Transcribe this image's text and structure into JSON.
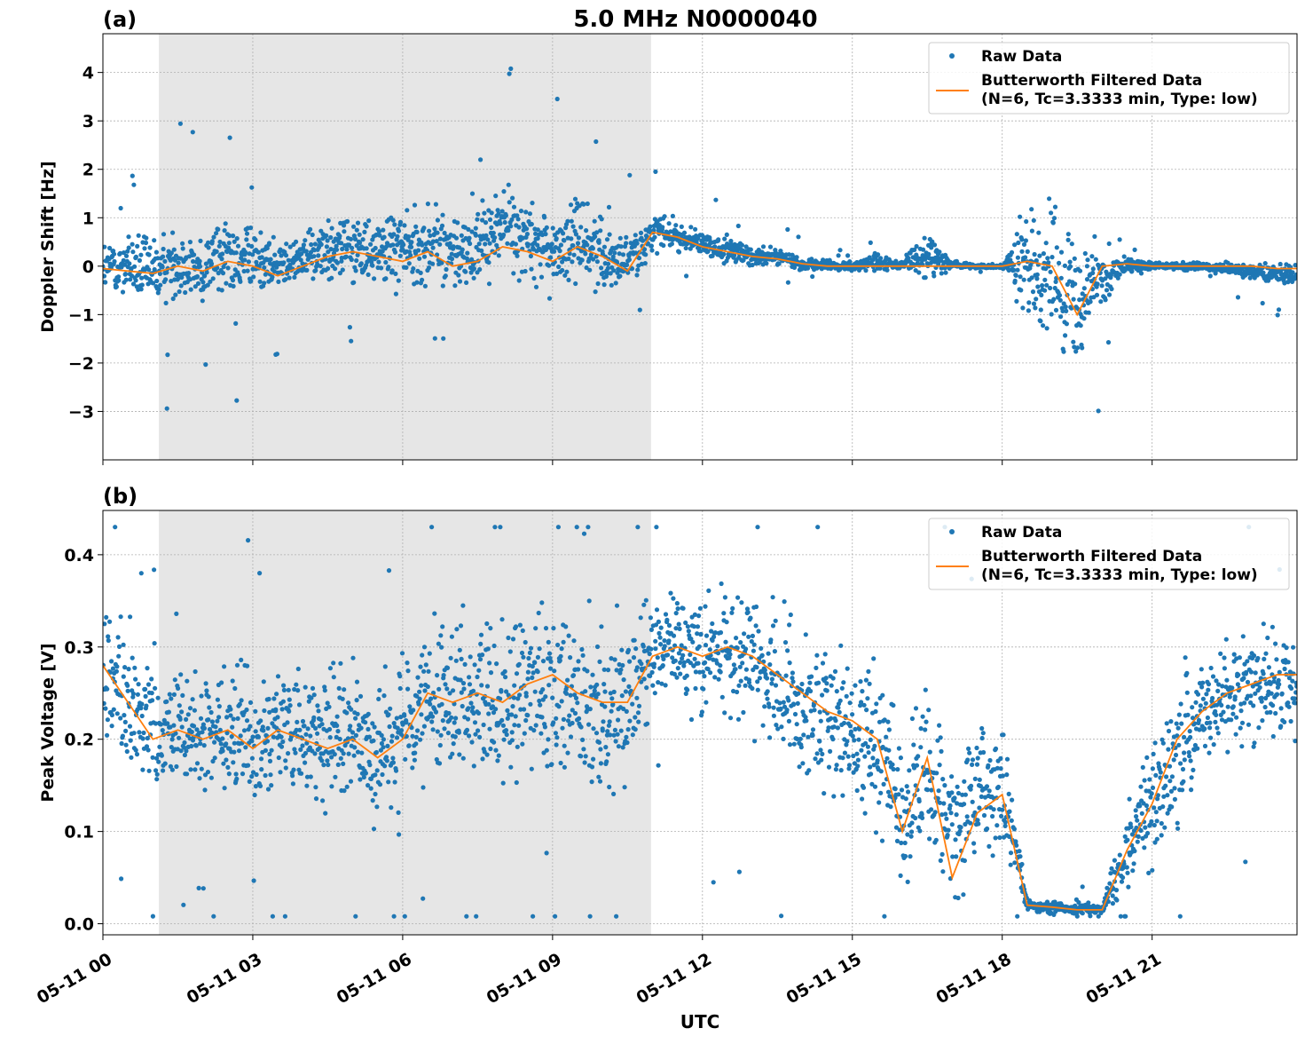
{
  "figure": {
    "title": "5.0 MHz N0000040",
    "xlabel": "UTC"
  },
  "legend": {
    "raw_label": "Raw Data",
    "filtered_label_line1": "Butterworth Filtered Data",
    "filtered_label_line2": "(N=6, Tc=3.3333 min, Type: low)"
  },
  "colors": {
    "raw": "#1f77b4",
    "filtered": "#ff7f0e",
    "shade": "#e6e6e6",
    "grid": "#b0b0b0"
  },
  "chart_data": [
    {
      "type": "scatter",
      "panel_label": "(a)",
      "title": "5.0 MHz N0000040",
      "ylabel": "Doppler Shift [Hz]",
      "xlabel": "",
      "x_unit": "hours UTC on 05-11",
      "xlim": [
        0,
        23.9
      ],
      "ylim": [
        -4.0,
        4.8
      ],
      "xticks": [
        0,
        3,
        6,
        9,
        12,
        15,
        18,
        21
      ],
      "xtick_labels": [
        "05-11 00",
        "05-11 03",
        "05-11 06",
        "05-11 09",
        "05-11 12",
        "05-11 15",
        "05-11 18",
        "05-11 21"
      ],
      "yticks": [
        -3,
        -2,
        -1,
        0,
        1,
        2,
        3,
        4
      ],
      "ytick_labels": [
        "−3",
        "−2",
        "−1",
        "0",
        "1",
        "2",
        "3",
        "4"
      ],
      "grid": true,
      "legend_position": "top-right",
      "shaded_interval": [
        1.12,
        10.97
      ],
      "t": [
        0,
        0.5,
        1,
        1.5,
        2,
        2.5,
        3,
        3.5,
        4,
        4.5,
        5,
        5.5,
        6,
        6.5,
        7,
        7.5,
        8,
        8.5,
        9,
        9.5,
        10,
        10.5,
        11,
        11.5,
        12,
        12.5,
        13,
        13.5,
        14,
        14.5,
        15,
        15.5,
        16,
        16.5,
        17,
        17.5,
        18,
        18.5,
        19,
        19.5,
        20,
        20.5,
        21,
        21.5,
        22,
        22.5,
        23,
        23.5,
        24
      ],
      "series": [
        {
          "name": "Butterworth Filtered Data",
          "kind": "line",
          "values": [
            -0.05,
            -0.1,
            -0.15,
            0.0,
            -0.1,
            0.1,
            0.0,
            -0.2,
            0.0,
            0.2,
            0.3,
            0.2,
            0.1,
            0.3,
            0.0,
            0.1,
            0.4,
            0.3,
            0.1,
            0.4,
            0.2,
            -0.1,
            0.7,
            0.6,
            0.4,
            0.3,
            0.2,
            0.15,
            0.05,
            0.0,
            0.0,
            0.0,
            0.0,
            0.0,
            0.0,
            0.0,
            0.0,
            0.1,
            0.0,
            -1.0,
            0.0,
            0.05,
            0.0,
            0.0,
            0.0,
            0.0,
            0.0,
            -0.05,
            -0.05
          ]
        },
        {
          "name": "Raw Data",
          "kind": "scatter-envelope",
          "low": [
            -0.7,
            -0.8,
            -0.9,
            -0.9,
            -0.9,
            -0.7,
            -0.6,
            -0.6,
            -0.4,
            -0.5,
            -0.7,
            -0.6,
            -0.6,
            -0.7,
            -0.7,
            -0.6,
            -0.4,
            -0.4,
            -0.6,
            -0.8,
            -0.8,
            -0.6,
            0.2,
            0.2,
            0.1,
            0.0,
            -0.05,
            -0.05,
            -0.1,
            -0.1,
            -0.1,
            -0.2,
            -0.05,
            -0.6,
            -0.05,
            -0.05,
            -0.05,
            -1.3,
            -1.5,
            -2.4,
            -1.0,
            -0.2,
            -0.1,
            -0.1,
            -0.1,
            -0.2,
            -0.3,
            -0.4,
            -0.5
          ],
          "high": [
            0.6,
            0.8,
            0.7,
            1.0,
            0.9,
            1.1,
            1.0,
            0.6,
            0.8,
            1.2,
            1.4,
            1.2,
            1.3,
            1.5,
            1.2,
            1.5,
            2.0,
            1.6,
            1.2,
            1.8,
            1.4,
            0.8,
            1.2,
            1.0,
            0.8,
            0.6,
            0.5,
            0.4,
            0.2,
            0.15,
            0.1,
            0.3,
            0.1,
            1.0,
            0.1,
            0.05,
            0.05,
            1.3,
            1.4,
            1.2,
            0.6,
            0.2,
            0.1,
            0.1,
            0.1,
            0.1,
            0.1,
            0.1,
            0.1
          ],
          "extremes": [
            -3.6,
            4.4
          ]
        }
      ]
    },
    {
      "type": "scatter",
      "panel_label": "(b)",
      "ylabel": "Peak Voltage [V]",
      "xlabel": "UTC",
      "x_unit": "hours UTC on 05-11",
      "xlim": [
        0,
        23.9
      ],
      "ylim": [
        -0.012,
        0.448
      ],
      "xticks": [
        0,
        3,
        6,
        9,
        12,
        15,
        18,
        21
      ],
      "xtick_labels": [
        "05-11 00",
        "05-11 03",
        "05-11 06",
        "05-11 09",
        "05-11 12",
        "05-11 15",
        "05-11 18",
        "05-11 21"
      ],
      "yticks": [
        0.0,
        0.1,
        0.2,
        0.3,
        0.4
      ],
      "ytick_labels": [
        "0.0",
        "0.1",
        "0.2",
        "0.3",
        "0.4"
      ],
      "grid": true,
      "legend_position": "top-right",
      "shaded_interval": [
        1.12,
        10.97
      ],
      "t": [
        0,
        0.5,
        1,
        1.5,
        2,
        2.5,
        3,
        3.5,
        4,
        4.5,
        5,
        5.5,
        6,
        6.5,
        7,
        7.5,
        8,
        8.5,
        9,
        9.5,
        10,
        10.5,
        11,
        11.5,
        12,
        12.5,
        13,
        13.5,
        14,
        14.5,
        15,
        15.5,
        16,
        16.5,
        17,
        17.5,
        18,
        18.5,
        19,
        19.5,
        20,
        20.5,
        21,
        21.5,
        22,
        22.5,
        23,
        23.5,
        24
      ],
      "series": [
        {
          "name": "Butterworth Filtered Data",
          "kind": "line",
          "values": [
            0.28,
            0.24,
            0.2,
            0.21,
            0.2,
            0.21,
            0.19,
            0.21,
            0.2,
            0.19,
            0.2,
            0.18,
            0.2,
            0.25,
            0.24,
            0.25,
            0.24,
            0.26,
            0.27,
            0.25,
            0.24,
            0.24,
            0.29,
            0.3,
            0.29,
            0.3,
            0.29,
            0.27,
            0.25,
            0.23,
            0.22,
            0.2,
            0.1,
            0.18,
            0.05,
            0.12,
            0.14,
            0.02,
            0.018,
            0.015,
            0.015,
            0.08,
            0.13,
            0.2,
            0.23,
            0.25,
            0.26,
            0.27,
            0.27
          ]
        },
        {
          "name": "Raw Data",
          "kind": "scatter-envelope",
          "low": [
            0.19,
            0.15,
            0.12,
            0.13,
            0.13,
            0.12,
            0.1,
            0.13,
            0.13,
            0.12,
            0.11,
            0.09,
            0.1,
            0.14,
            0.14,
            0.15,
            0.13,
            0.15,
            0.13,
            0.12,
            0.11,
            0.12,
            0.23,
            0.23,
            0.22,
            0.22,
            0.2,
            0.16,
            0.14,
            0.12,
            0.1,
            0.08,
            0.02,
            0.06,
            0.015,
            0.04,
            0.06,
            0.012,
            0.01,
            0.008,
            0.008,
            0.02,
            0.04,
            0.08,
            0.14,
            0.17,
            0.18,
            0.17,
            0.18
          ],
          "high": [
            0.36,
            0.34,
            0.29,
            0.29,
            0.28,
            0.3,
            0.29,
            0.3,
            0.28,
            0.29,
            0.3,
            0.28,
            0.31,
            0.34,
            0.34,
            0.35,
            0.34,
            0.36,
            0.36,
            0.36,
            0.34,
            0.35,
            0.36,
            0.37,
            0.37,
            0.38,
            0.37,
            0.35,
            0.34,
            0.33,
            0.32,
            0.32,
            0.22,
            0.28,
            0.2,
            0.24,
            0.24,
            0.03,
            0.025,
            0.022,
            0.025,
            0.14,
            0.22,
            0.28,
            0.31,
            0.32,
            0.33,
            0.34,
            0.33
          ],
          "extremes": [
            0.008,
            0.43
          ]
        }
      ]
    }
  ]
}
